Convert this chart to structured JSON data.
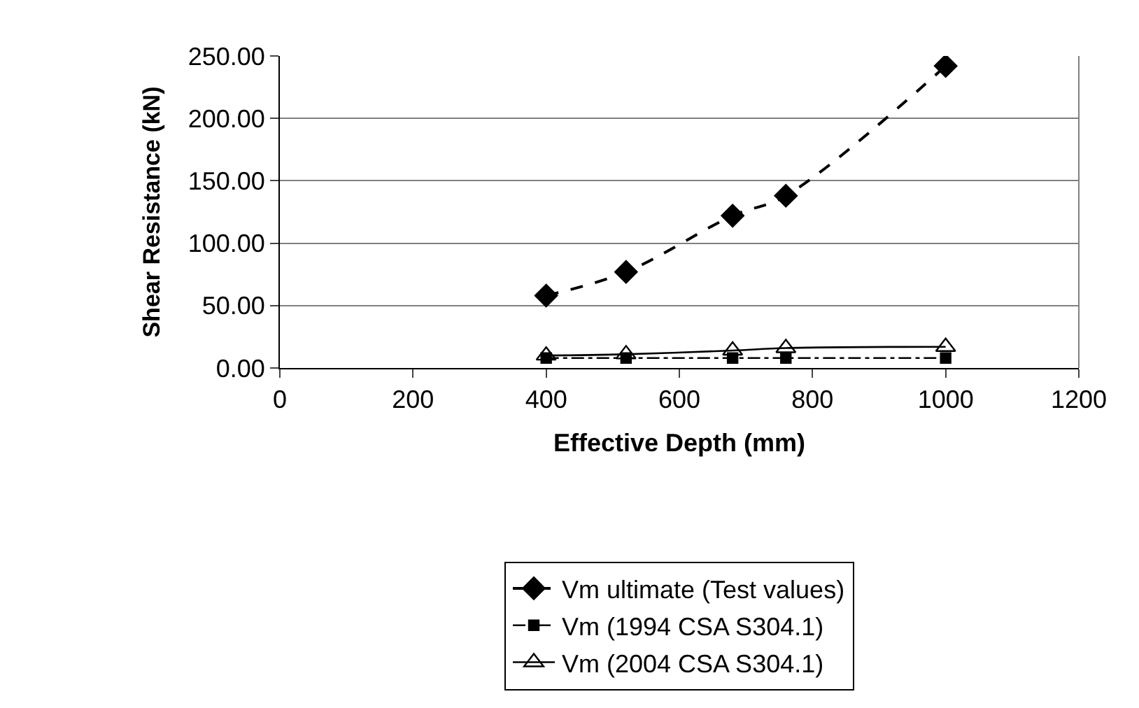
{
  "chart_data": {
    "type": "line",
    "xlabel": "Effective Depth (mm)",
    "ylabel": "Shear Resistance (kN)",
    "xlim": [
      0,
      1200
    ],
    "xticks": [
      0,
      200,
      400,
      600,
      800,
      1000,
      1200
    ],
    "ylim": [
      0,
      250
    ],
    "yticks": [
      {
        "value": 0,
        "label": "0.00"
      },
      {
        "value": 50,
        "label": "50.00"
      },
      {
        "value": 100,
        "label": "100.00"
      },
      {
        "value": 150,
        "label": "150.00"
      },
      {
        "value": 200,
        "label": "200.00"
      },
      {
        "value": 250,
        "label": "250.00"
      }
    ],
    "grid": "y",
    "legend": "bottom",
    "series": [
      {
        "name": "Vm ultimate (Test values)",
        "color": "#000000",
        "marker": "diamond",
        "line_style": "dashed",
        "x": [
          400,
          520,
          680,
          760,
          1000
        ],
        "values": [
          58,
          77,
          122,
          138,
          242
        ]
      },
      {
        "name": "Vm (1994 CSA S304.1)",
        "color": "#000000",
        "marker": "square",
        "line_style": "dashdot",
        "x": [
          400,
          520,
          680,
          760,
          1000
        ],
        "values": [
          8,
          8,
          8,
          8,
          8
        ]
      },
      {
        "name": "Vm (2004 CSA S304.1)",
        "color": "#000000",
        "marker": "triangle",
        "line_style": "solid",
        "x": [
          400,
          520,
          680,
          760,
          1000
        ],
        "values": [
          10,
          11,
          14,
          16,
          17
        ]
      }
    ]
  }
}
